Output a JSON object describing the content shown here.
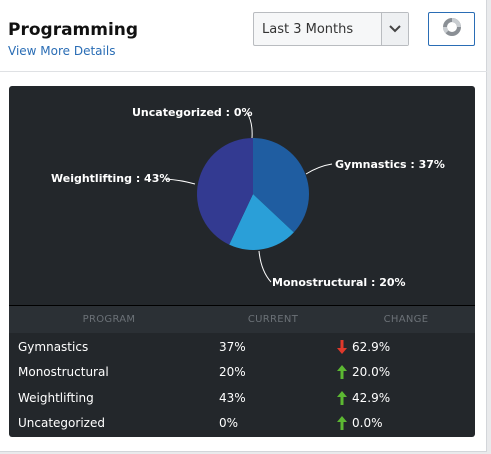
{
  "header": {
    "title": "Programming",
    "details_link": "View More Details"
  },
  "range_select": {
    "selected": "Last 3 Months"
  },
  "icons": {
    "caret": "chevron-down-icon",
    "chart_type": "pie-chart-icon",
    "down": "arrow-down-icon",
    "up": "arrow-up-icon"
  },
  "colors": {
    "gymnastics": "#1f5da1",
    "monostructural": "#2a9fd8",
    "weightlifting": "#333a91",
    "uncategorized": "#7a7a7a",
    "down_arrow": "#e0392b",
    "up_arrow": "#5cb832",
    "panel_bg": "#23272b"
  },
  "chart_data": {
    "type": "pie",
    "slices": [
      {
        "name": "Gymnastics",
        "value": 37,
        "label": "Gymnastics : 37%"
      },
      {
        "name": "Monostructural",
        "value": 20,
        "label": "Monostructural : 20%"
      },
      {
        "name": "Weightlifting",
        "value": 43,
        "label": "Weightlifting : 43%"
      },
      {
        "name": "Uncategorized",
        "value": 0,
        "label": "Uncategorized : 0%"
      }
    ]
  },
  "table": {
    "headers": {
      "program": "PROGRAM",
      "current": "CURRENT",
      "change": "CHANGE"
    },
    "rows": [
      {
        "program": "Gymnastics",
        "current": "37%",
        "change": "62.9%",
        "direction": "down"
      },
      {
        "program": "Monostructural",
        "current": "20%",
        "change": "20.0%",
        "direction": "up"
      },
      {
        "program": "Weightlifting",
        "current": "43%",
        "change": "42.9%",
        "direction": "up"
      },
      {
        "program": "Uncategorized",
        "current": "0%",
        "change": "0.0%",
        "direction": "up"
      }
    ]
  }
}
